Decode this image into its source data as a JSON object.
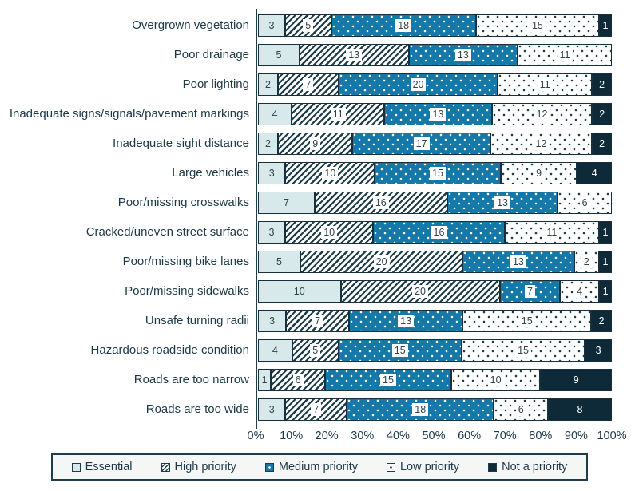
{
  "chart_data": {
    "type": "bar",
    "orientation": "horizontal",
    "stacked": "100%",
    "title": "",
    "xlabel": "",
    "ylabel": "",
    "xlim": [
      0,
      100
    ],
    "grid": false,
    "legend_position": "bottom",
    "categories": [
      "Overgrown vegetation",
      "Poor drainage",
      "Poor lighting",
      "Inadequate signs/signals/pavement markings",
      "Inadequate sight distance",
      "Large vehicles",
      "Poor/missing crosswalks",
      "Cracked/uneven street surface",
      "Poor/missing bike lanes",
      "Poor/missing sidewalks",
      "Unsafe turning radii",
      "Hazardous roadside condition",
      "Roads are too narrow",
      "Roads are too wide"
    ],
    "series": [
      {
        "name": "Essential",
        "values": [
          3,
          5,
          2,
          4,
          2,
          3,
          7,
          3,
          5,
          10,
          3,
          4,
          1,
          3
        ]
      },
      {
        "name": "High priority",
        "values": [
          5,
          13,
          7,
          11,
          9,
          10,
          16,
          10,
          20,
          20,
          7,
          5,
          6,
          7
        ]
      },
      {
        "name": "Medium priority",
        "values": [
          18,
          13,
          20,
          13,
          17,
          15,
          13,
          16,
          13,
          7,
          13,
          15,
          15,
          18
        ]
      },
      {
        "name": "Low priority",
        "values": [
          15,
          11,
          11,
          12,
          12,
          9,
          6,
          11,
          2,
          4,
          15,
          15,
          10,
          6
        ]
      },
      {
        "name": "Not a priority",
        "values": [
          1,
          0,
          2,
          2,
          2,
          4,
          0,
          1,
          1,
          1,
          2,
          3,
          9,
          8
        ]
      }
    ],
    "x_ticks": [
      "0%",
      "10%",
      "20%",
      "30%",
      "40%",
      "50%",
      "60%",
      "70%",
      "80%",
      "90%",
      "100%"
    ],
    "colors": {
      "essential": "#d7e9eb",
      "high_priority_hatch": "#1e3d4a",
      "medium_priority": "#1478a8",
      "low_priority_dot": "#1e3d4a",
      "not_a_priority": "#0e2a38",
      "axis_and_text": "#1d3948"
    }
  }
}
